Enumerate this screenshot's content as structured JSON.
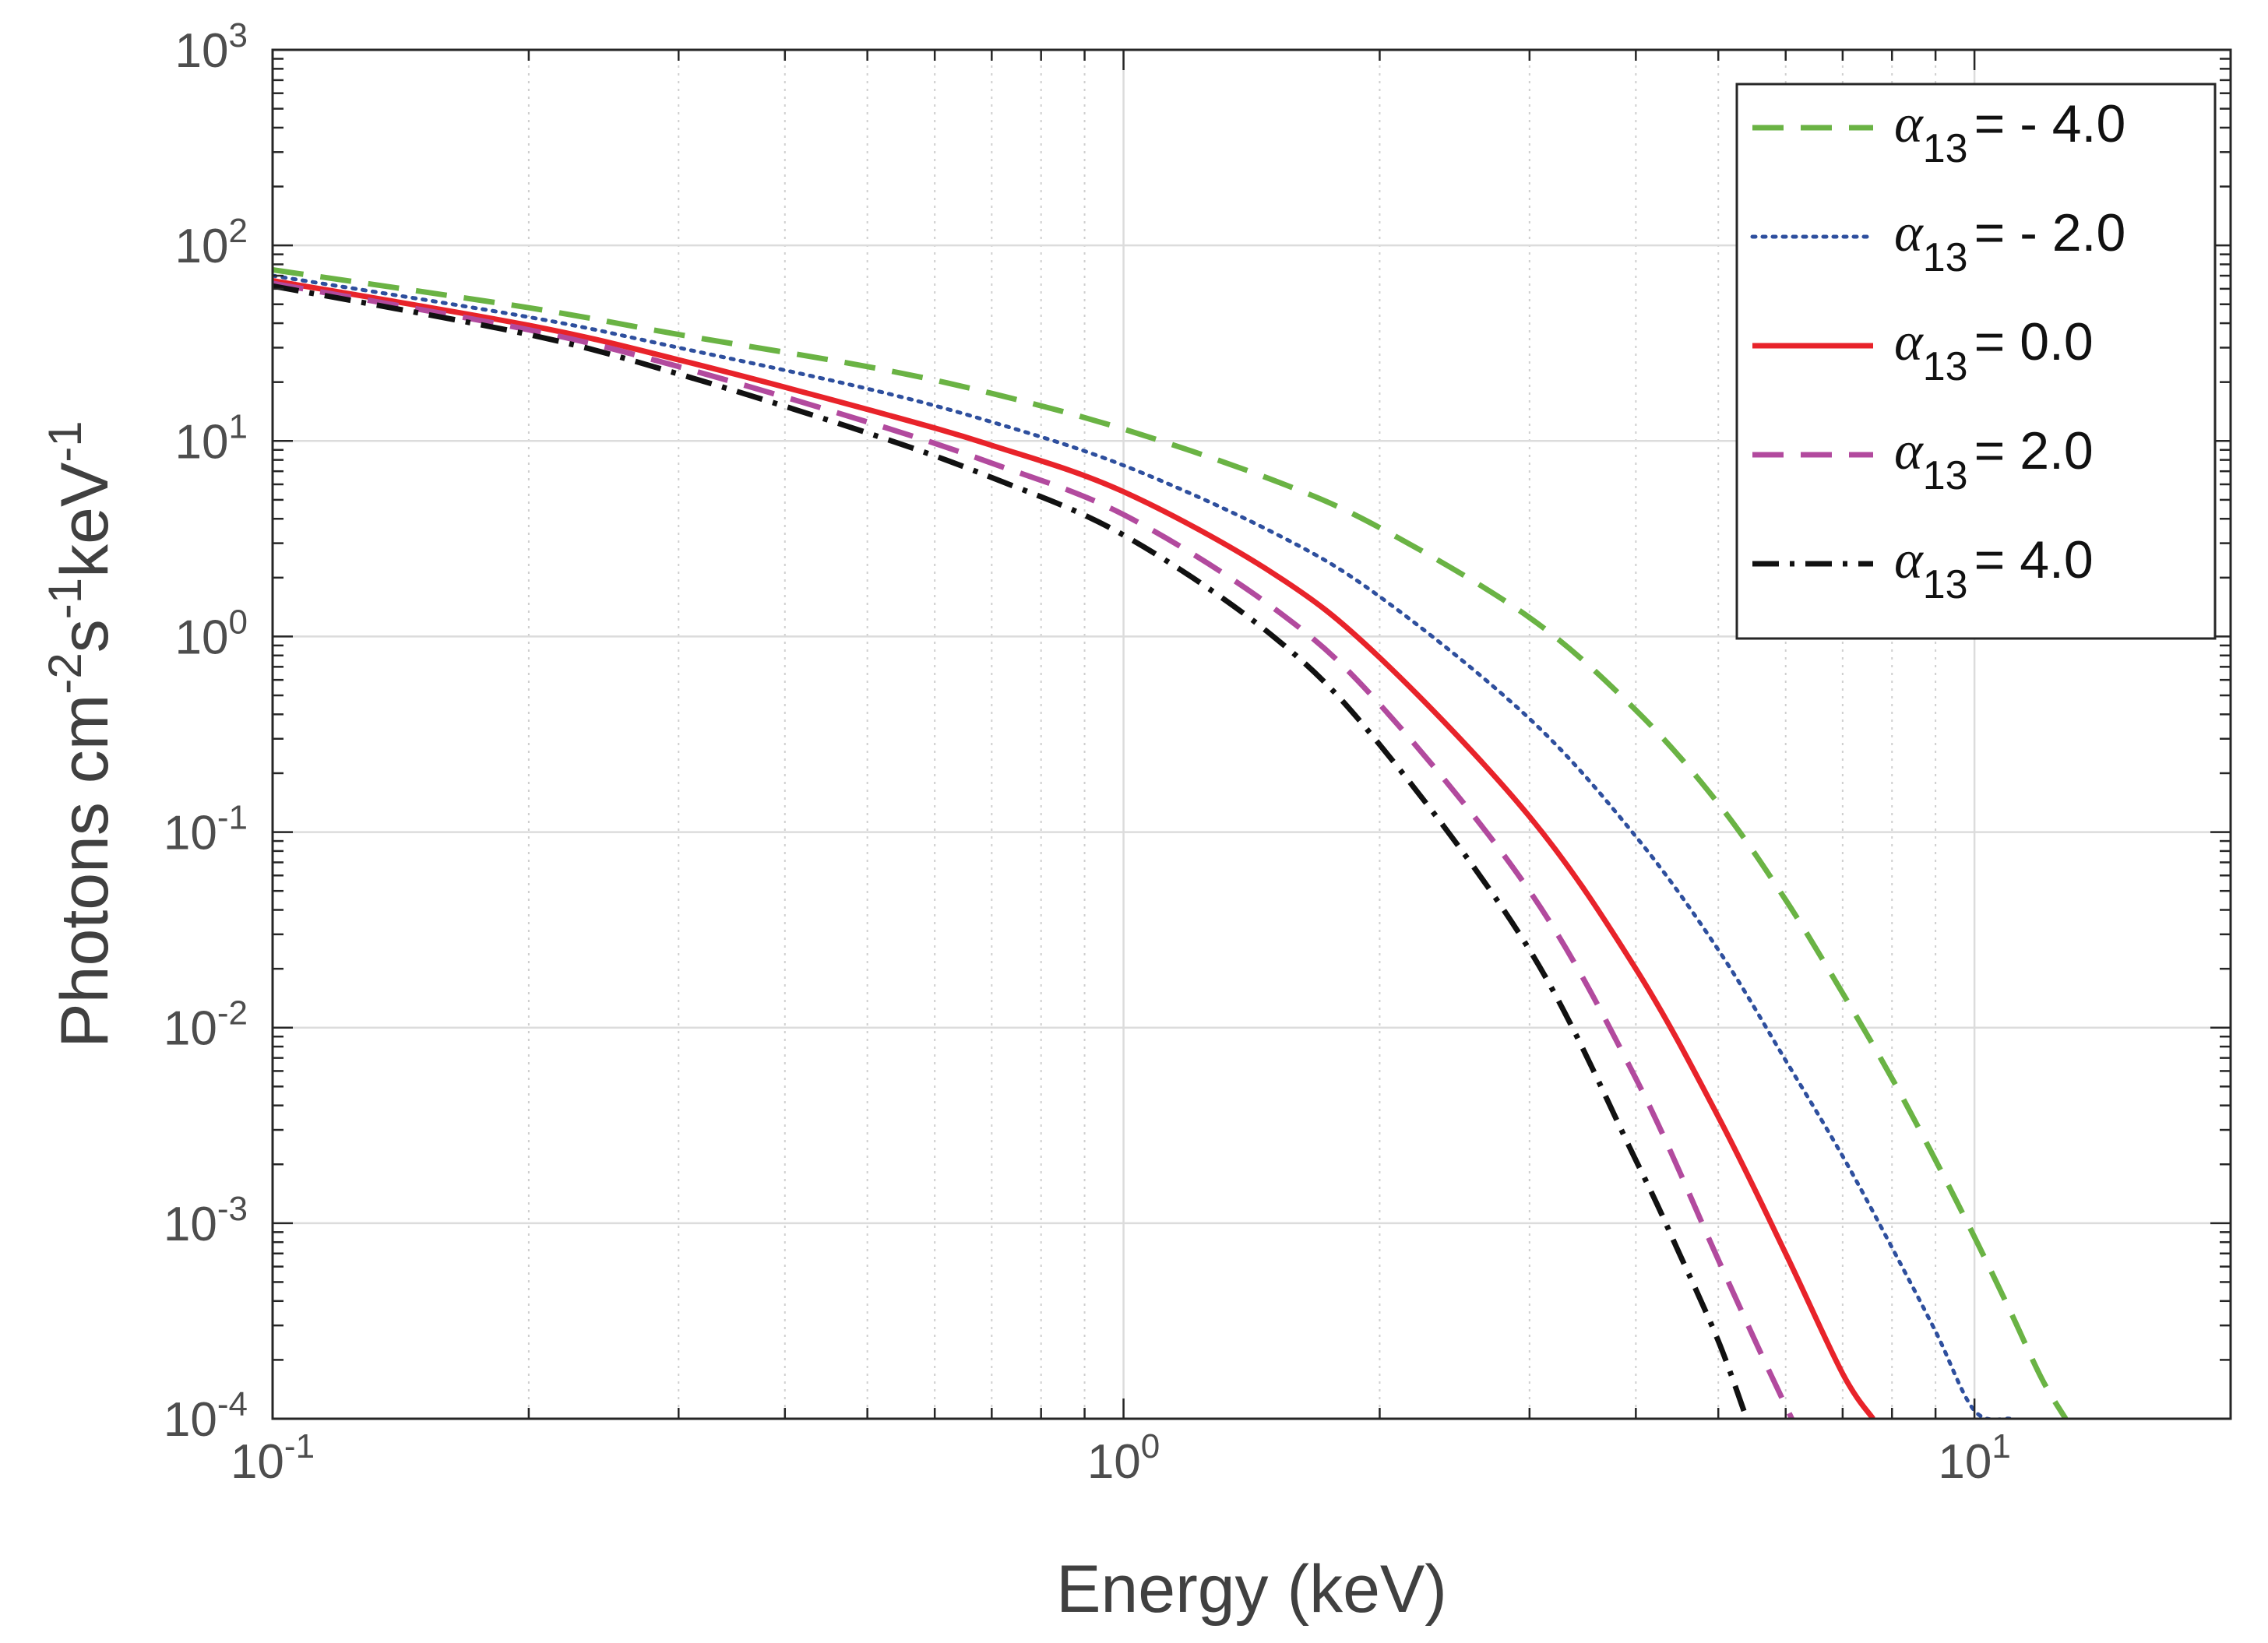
{
  "chart_data": {
    "type": "line",
    "title": "",
    "xlabel": "Energy (keV)",
    "ylabel_parts": {
      "base": "Photons cm",
      "exp1": "-2",
      "mid": "s",
      "exp2": "-1",
      "end": "keV",
      "exp3": "-1"
    },
    "xscale": "log",
    "yscale": "log",
    "xlim": [
      0.1,
      20
    ],
    "ylim": [
      0.0001,
      1000
    ],
    "grid": true,
    "legend_position": "top-right",
    "x_ticks": [
      {
        "value": 0.1,
        "base": "10",
        "exp": "-1"
      },
      {
        "value": 1,
        "base": "10",
        "exp": "0"
      },
      {
        "value": 10,
        "base": "10",
        "exp": "1"
      }
    ],
    "y_ticks": [
      {
        "value": 0.0001,
        "base": "10",
        "exp": "-4"
      },
      {
        "value": 0.001,
        "base": "10",
        "exp": "-3"
      },
      {
        "value": 0.01,
        "base": "10",
        "exp": "-2"
      },
      {
        "value": 0.1,
        "base": "10",
        "exp": "-1"
      },
      {
        "value": 1,
        "base": "10",
        "exp": "0"
      },
      {
        "value": 10,
        "base": "10",
        "exp": "1"
      },
      {
        "value": 100,
        "base": "10",
        "exp": "2"
      },
      {
        "value": 1000,
        "base": "10",
        "exp": "3"
      }
    ],
    "series": [
      {
        "name": "α13 = - 4.0",
        "symbol": "α",
        "subscript": "13",
        "equals": "= - 4.0",
        "color": "#6ab344",
        "style": "dashed",
        "x": [
          0.1,
          0.2,
          0.3,
          0.5,
          0.7,
          1.0,
          1.5,
          2.0,
          3.0,
          4.0,
          5.0,
          6.0,
          7.0,
          8.0,
          9.0,
          10.0,
          11.0,
          12.0,
          12.8
        ],
        "y": [
          75,
          48,
          35,
          24,
          17.5,
          11.5,
          6.3,
          3.6,
          1.25,
          0.42,
          0.14,
          0.045,
          0.015,
          0.0055,
          0.0021,
          0.00085,
          0.00036,
          0.00016,
          0.0001
        ]
      },
      {
        "name": "α13 = - 2.0",
        "symbol": "α",
        "subscript": "13",
        "equals": "= - 2.0",
        "color": "#2e4f9e",
        "style": "dotted",
        "x": [
          0.1,
          0.2,
          0.3,
          0.5,
          0.7,
          1.0,
          1.5,
          2.0,
          3.0,
          4.0,
          5.0,
          6.0,
          7.0,
          8.0,
          9.0,
          10.0,
          11.0
        ],
        "y": [
          70,
          43,
          30,
          18.5,
          12.5,
          7.5,
          3.4,
          1.6,
          0.38,
          0.095,
          0.025,
          0.0068,
          0.0022,
          0.00075,
          0.00028,
          0.00011,
          0.0001
        ]
      },
      {
        "name": "α13 = 0.0",
        "symbol": "α",
        "subscript": "13",
        "equals": "= 0.0",
        "color": "#e8232a",
        "style": "solid",
        "x": [
          0.1,
          0.2,
          0.3,
          0.5,
          0.7,
          1.0,
          1.5,
          2.0,
          3.0,
          4.0,
          5.0,
          6.0,
          7.0,
          7.6
        ],
        "y": [
          66,
          39,
          26,
          14.5,
          9.5,
          5.5,
          2.1,
          0.78,
          0.12,
          0.02,
          0.0035,
          0.0007,
          0.00017,
          0.0001
        ]
      },
      {
        "name": "α13 = 2.0",
        "symbol": "α",
        "subscript": "13",
        "equals": "= 2.0",
        "color": "#b24a9e",
        "style": "dashed",
        "x": [
          0.1,
          0.2,
          0.3,
          0.5,
          0.7,
          1.0,
          1.5,
          2.0,
          3.0,
          4.0,
          5.0,
          5.6,
          6.1
        ],
        "y": [
          64,
          37,
          24,
          12.5,
          7.7,
          4.2,
          1.4,
          0.45,
          0.05,
          0.0055,
          0.00065,
          0.00022,
          0.0001
        ]
      },
      {
        "name": "α13 = 4.0",
        "symbol": "α",
        "subscript": "13",
        "equals": "= 4.0",
        "color": "#111111",
        "style": "dashdot",
        "x": [
          0.1,
          0.2,
          0.3,
          0.5,
          0.7,
          1.0,
          1.5,
          2.0,
          3.0,
          4.0,
          4.5,
          5.0,
          5.4
        ],
        "y": [
          62,
          35,
          22,
          11,
          6.5,
          3.3,
          1.0,
          0.28,
          0.025,
          0.0021,
          0.0007,
          0.00025,
          0.0001
        ]
      }
    ]
  }
}
